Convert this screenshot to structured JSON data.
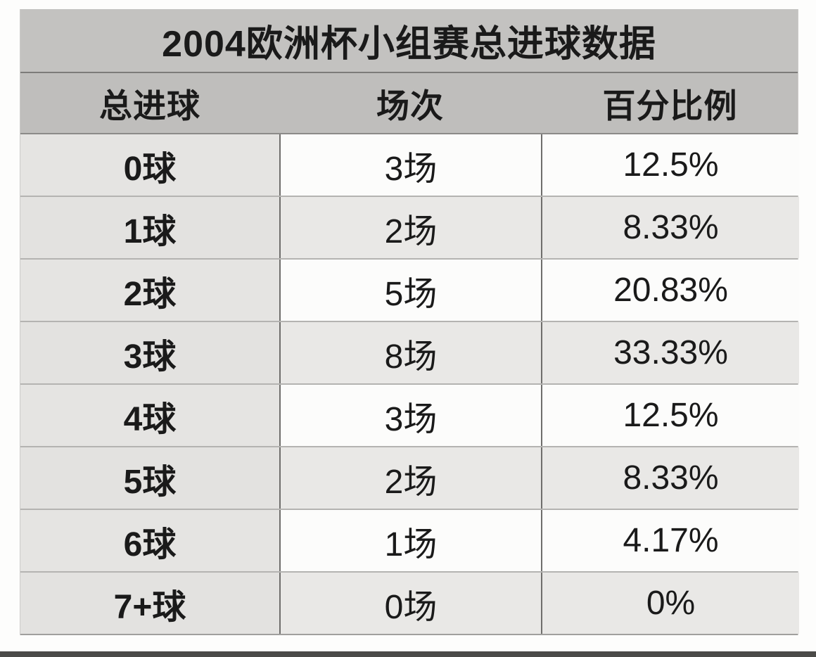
{
  "page": {
    "title": "2004欧洲杯小组赛总进球数据"
  },
  "table": {
    "columns": [
      "总进球",
      "场次",
      "百分比例"
    ],
    "rows": [
      {
        "goals": "0球",
        "matches": "3场",
        "percentage": "12.5%"
      },
      {
        "goals": "1球",
        "matches": "2场",
        "percentage": "8.33%"
      },
      {
        "goals": "2球",
        "matches": "5场",
        "percentage": "20.83%"
      },
      {
        "goals": "3球",
        "matches": "8场",
        "percentage": "33.33%"
      },
      {
        "goals": "4球",
        "matches": "3场",
        "percentage": "12.5%"
      },
      {
        "goals": "5球",
        "matches": "2场",
        "percentage": "8.33%"
      },
      {
        "goals": "6球",
        "matches": "1场",
        "percentage": "4.17%"
      },
      {
        "goals": "7+球",
        "matches": "0场",
        "percentage": "0%"
      }
    ]
  },
  "colors": {
    "title_bar_bg": "#c3c2c0",
    "header_bg": "#bfbebc",
    "first_col_bg": "#e5e4e2",
    "shaded_row_bg": "#e9e8e6",
    "light_row_bg": "#fcfcfb",
    "vertical_divider": "#6f6e6c",
    "row_divider": "#b4b3b1",
    "text": "#1a1a1a",
    "bottom_bar": "#4b4a48"
  },
  "chart_data": {
    "type": "table",
    "title": "2004欧洲杯小组赛总进球数据",
    "columns": [
      "总进球",
      "场次",
      "百分比例"
    ],
    "rows": [
      [
        "0球",
        "3场",
        "12.5%"
      ],
      [
        "1球",
        "2场",
        "8.33%"
      ],
      [
        "2球",
        "5场",
        "20.83%"
      ],
      [
        "3球",
        "8场",
        "33.33%"
      ],
      [
        "4球",
        "3场",
        "12.5%"
      ],
      [
        "5球",
        "2场",
        "8.33%"
      ],
      [
        "6球",
        "1场",
        "4.17%"
      ],
      [
        "7+球",
        "0场",
        "0%"
      ]
    ],
    "goal_categories": [
      "0",
      "1",
      "2",
      "3",
      "4",
      "5",
      "6",
      "7+"
    ],
    "matches_values": [
      3,
      2,
      5,
      8,
      3,
      2,
      1,
      0
    ],
    "percentage_values": [
      12.5,
      8.33,
      20.83,
      33.33,
      12.5,
      8.33,
      4.17,
      0
    ]
  }
}
